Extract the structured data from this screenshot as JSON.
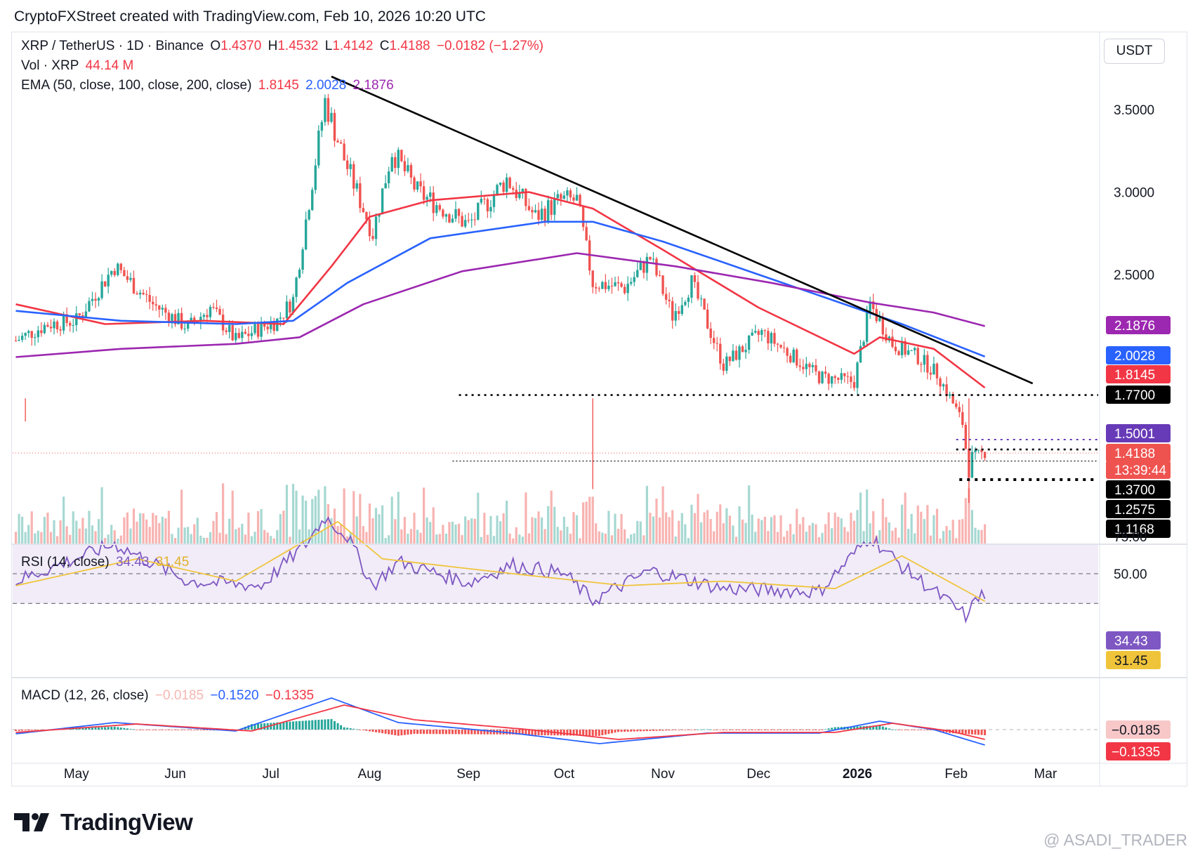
{
  "header": {
    "attribution": "CryptoFXStreet created with TradingView.com, Feb 10, 2026 10:20 UTC"
  },
  "legend": {
    "symbol": "XRP / TetherUS · 1D · Binance",
    "o_label": "O",
    "o_value": "1.4370",
    "h_label": "H",
    "h_value": "1.4532",
    "l_label": "L",
    "l_value": "1.4142",
    "c_label": "C",
    "c_value": "1.4188",
    "change": "−0.0182 (−1.27%)",
    "vol_label": "Vol · XRP",
    "vol_value": "44.14 M",
    "ema_label": "EMA (50, close, 100, close, 200, close)",
    "ema50": "1.8145",
    "ema100": "2.0028",
    "ema200": "2.1876",
    "rsi_label": "RSI (14, close)",
    "rsi_value": "34.43",
    "rsi_ma": "31.45",
    "macd_label": "MACD (12, 26, close)",
    "macd_hist": "−0.0185",
    "macd_line": "−0.1520",
    "macd_signal": "−0.1335"
  },
  "currency": "USDT",
  "colors": {
    "up": "#26a69a",
    "down": "#ef5350",
    "ema50": "#f23645",
    "ema100": "#2962ff",
    "ema200": "#9c27b0",
    "rsi": "#7e57c2",
    "rsi_ma": "#f0c43a",
    "trendline": "#000000"
  },
  "price_axis": {
    "ticks": [
      "3.5000",
      "3.0000",
      "2.5000"
    ],
    "labels": [
      {
        "text": "2.1876",
        "color": "#9c27b0"
      },
      {
        "text": "2.0028",
        "color": "#2962ff"
      },
      {
        "text": "1.8145",
        "color": "#f23645"
      },
      {
        "text": "1.7700",
        "color": "#000000"
      },
      {
        "text": "1.5001",
        "color": "#673ab7"
      },
      {
        "text": "1.4188",
        "color": "#ef5350"
      },
      {
        "text": "13:39:44",
        "color": "#ef5350"
      },
      {
        "text": "1.3700",
        "color": "#000000"
      },
      {
        "text": "1.2575",
        "color": "#000000"
      },
      {
        "text": "1.1168",
        "color": "#000000"
      }
    ]
  },
  "rsi_axis": {
    "ticks": [
      "75.00",
      "50.00"
    ],
    "labels": [
      {
        "text": "34.43",
        "color": "#7e57c2"
      },
      {
        "text": "31.45",
        "color": "#f0c43a"
      }
    ]
  },
  "macd_axis": {
    "labels": [
      {
        "text": "−0.0185",
        "color": "#f8c8c8"
      },
      {
        "text": "−0.1335",
        "color": "#f23645"
      }
    ]
  },
  "time_axis": [
    {
      "text": "May",
      "bold": false
    },
    {
      "text": "Jun",
      "bold": false
    },
    {
      "text": "Jul",
      "bold": false
    },
    {
      "text": "Aug",
      "bold": false
    },
    {
      "text": "Sep",
      "bold": false
    },
    {
      "text": "Oct",
      "bold": false
    },
    {
      "text": "Nov",
      "bold": false
    },
    {
      "text": "Dec",
      "bold": false
    },
    {
      "text": "2026",
      "bold": true
    },
    {
      "text": "Feb",
      "bold": false
    },
    {
      "text": "Mar",
      "bold": false
    }
  ],
  "branding": {
    "logo_text": "TradingView",
    "watermark": "@ ASADI_TRADER"
  },
  "chart_data": {
    "type": "candlestick",
    "symbol": "XRP / TetherUS",
    "interval": "1D",
    "exchange": "Binance",
    "price_keypoints": [
      [
        "2025-04-12",
        2.1
      ],
      [
        "2025-04-22",
        2.2
      ],
      [
        "2025-05-01",
        2.22
      ],
      [
        "2025-05-13",
        2.55
      ],
      [
        "2025-05-25",
        2.32
      ],
      [
        "2025-06-05",
        2.18
      ],
      [
        "2025-06-12",
        2.3
      ],
      [
        "2025-06-20",
        2.1
      ],
      [
        "2025-06-28",
        2.18
      ],
      [
        "2025-07-03",
        2.22
      ],
      [
        "2025-07-08",
        2.35
      ],
      [
        "2025-07-13",
        2.95
      ],
      [
        "2025-07-18",
        3.55
      ],
      [
        "2025-07-24",
        3.2
      ],
      [
        "2025-08-02",
        2.75
      ],
      [
        "2025-08-08",
        3.25
      ],
      [
        "2025-08-16",
        3.0
      ],
      [
        "2025-08-24",
        2.9
      ],
      [
        "2025-09-01",
        2.8
      ],
      [
        "2025-09-13",
        3.08
      ],
      [
        "2025-09-22",
        2.85
      ],
      [
        "2025-09-30",
        2.95
      ],
      [
        "2025-10-05",
        2.95
      ],
      [
        "2025-10-10",
        2.45
      ],
      [
        "2025-10-20",
        2.42
      ],
      [
        "2025-10-28",
        2.6
      ],
      [
        "2025-11-04",
        2.25
      ],
      [
        "2025-11-10",
        2.45
      ],
      [
        "2025-11-20",
        1.95
      ],
      [
        "2025-12-02",
        2.15
      ],
      [
        "2025-12-12",
        2.0
      ],
      [
        "2025-12-20",
        1.88
      ],
      [
        "2025-12-31",
        1.85
      ],
      [
        "2026-01-05",
        2.32
      ],
      [
        "2026-01-12",
        2.08
      ],
      [
        "2026-01-20",
        2.0
      ],
      [
        "2026-01-26",
        1.9
      ],
      [
        "2026-01-31",
        1.72
      ],
      [
        "2026-02-03",
        1.6
      ],
      [
        "2026-02-05",
        1.3
      ],
      [
        "2026-02-06",
        1.4
      ],
      [
        "2026-02-10",
        1.4188
      ]
    ],
    "ema_keypoints": {
      "ema50": [
        [
          "2025-04-12",
          2.32
        ],
        [
          "2025-05-10",
          2.2
        ],
        [
          "2025-06-10",
          2.22
        ],
        [
          "2025-07-05",
          2.2
        ],
        [
          "2025-07-20",
          2.55
        ],
        [
          "2025-08-01",
          2.85
        ],
        [
          "2025-08-20",
          2.95
        ],
        [
          "2025-09-20",
          3.0
        ],
        [
          "2025-10-10",
          2.9
        ],
        [
          "2025-11-01",
          2.65
        ],
        [
          "2025-12-01",
          2.3
        ],
        [
          "2025-12-31",
          2.02
        ],
        [
          "2026-01-08",
          2.12
        ],
        [
          "2026-01-25",
          2.05
        ],
        [
          "2026-02-10",
          1.8145
        ]
      ],
      "ema100": [
        [
          "2025-04-12",
          2.28
        ],
        [
          "2025-05-15",
          2.22
        ],
        [
          "2025-06-20",
          2.2
        ],
        [
          "2025-07-08",
          2.22
        ],
        [
          "2025-07-25",
          2.45
        ],
        [
          "2025-08-20",
          2.72
        ],
        [
          "2025-09-25",
          2.82
        ],
        [
          "2025-10-10",
          2.82
        ],
        [
          "2025-11-01",
          2.7
        ],
        [
          "2025-12-01",
          2.5
        ],
        [
          "2025-12-31",
          2.3
        ],
        [
          "2026-01-15",
          2.2
        ],
        [
          "2026-02-10",
          2.0028
        ]
      ],
      "ema200": [
        [
          "2025-04-12",
          2.0
        ],
        [
          "2025-05-15",
          2.05
        ],
        [
          "2025-06-20",
          2.08
        ],
        [
          "2025-07-10",
          2.12
        ],
        [
          "2025-07-30",
          2.32
        ],
        [
          "2025-08-30",
          2.52
        ],
        [
          "2025-10-05",
          2.63
        ],
        [
          "2025-11-05",
          2.55
        ],
        [
          "2025-12-05",
          2.45
        ],
        [
          "2026-01-05",
          2.33
        ],
        [
          "2026-01-25",
          2.27
        ],
        [
          "2026-02-10",
          2.1876
        ]
      ]
    },
    "trendline": {
      "from": [
        "2025-07-20",
        3.7
      ],
      "to": [
        "2026-02-25",
        1.84
      ]
    },
    "horizontal_levels": [
      {
        "value": 1.77,
        "from": "2025-08-29",
        "style": "dotted"
      },
      {
        "value": 1.5001,
        "from": "2026-02-01",
        "style": "dotted-purple"
      },
      {
        "value": 1.44,
        "from": "2026-02-01",
        "style": "dotted"
      },
      {
        "value": 1.37,
        "from": "2025-08-27",
        "style": "dotted-thin"
      },
      {
        "value": 1.2575,
        "from": "2026-02-02",
        "style": "dotted-thick"
      }
    ],
    "wick_lows": [
      {
        "date": "2025-04-15",
        "value": 1.61
      },
      {
        "date": "2025-10-10",
        "value": 1.2
      },
      {
        "date": "2026-02-05",
        "value": 1.1168
      }
    ],
    "rsi_keypoints": [
      [
        "2025-04-12",
        45
      ],
      [
        "2025-05-13",
        70
      ],
      [
        "2025-06-05",
        45
      ],
      [
        "2025-06-28",
        42
      ],
      [
        "2025-07-12",
        70
      ],
      [
        "2025-07-18",
        88
      ],
      [
        "2025-07-25",
        75
      ],
      [
        "2025-08-02",
        42
      ],
      [
        "2025-08-10",
        58
      ],
      [
        "2025-09-01",
        44
      ],
      [
        "2025-09-15",
        56
      ],
      [
        "2025-10-01",
        50
      ],
      [
        "2025-10-10",
        32
      ],
      [
        "2025-10-28",
        52
      ],
      [
        "2025-11-20",
        40
      ],
      [
        "2025-12-20",
        38
      ],
      [
        "2026-01-05",
        75
      ],
      [
        "2026-01-15",
        55
      ],
      [
        "2026-02-05",
        20
      ],
      [
        "2026-02-07",
        36
      ],
      [
        "2026-02-10",
        34.43
      ]
    ],
    "rsi_ma_keypoints": [
      [
        "2025-04-12",
        42
      ],
      [
        "2025-05-20",
        60
      ],
      [
        "2025-06-20",
        45
      ],
      [
        "2025-07-22",
        85
      ],
      [
        "2025-08-05",
        60
      ],
      [
        "2025-09-15",
        50
      ],
      [
        "2025-10-20",
        42
      ],
      [
        "2025-11-20",
        45
      ],
      [
        "2025-12-25",
        40
      ],
      [
        "2026-01-15",
        62
      ],
      [
        "2026-02-10",
        31.45
      ]
    ],
    "rsi_bands": [
      70,
      50,
      30
    ],
    "macd": {
      "histogram": -0.0185,
      "macd_line": -0.152,
      "signal_line": -0.1335
    }
  }
}
